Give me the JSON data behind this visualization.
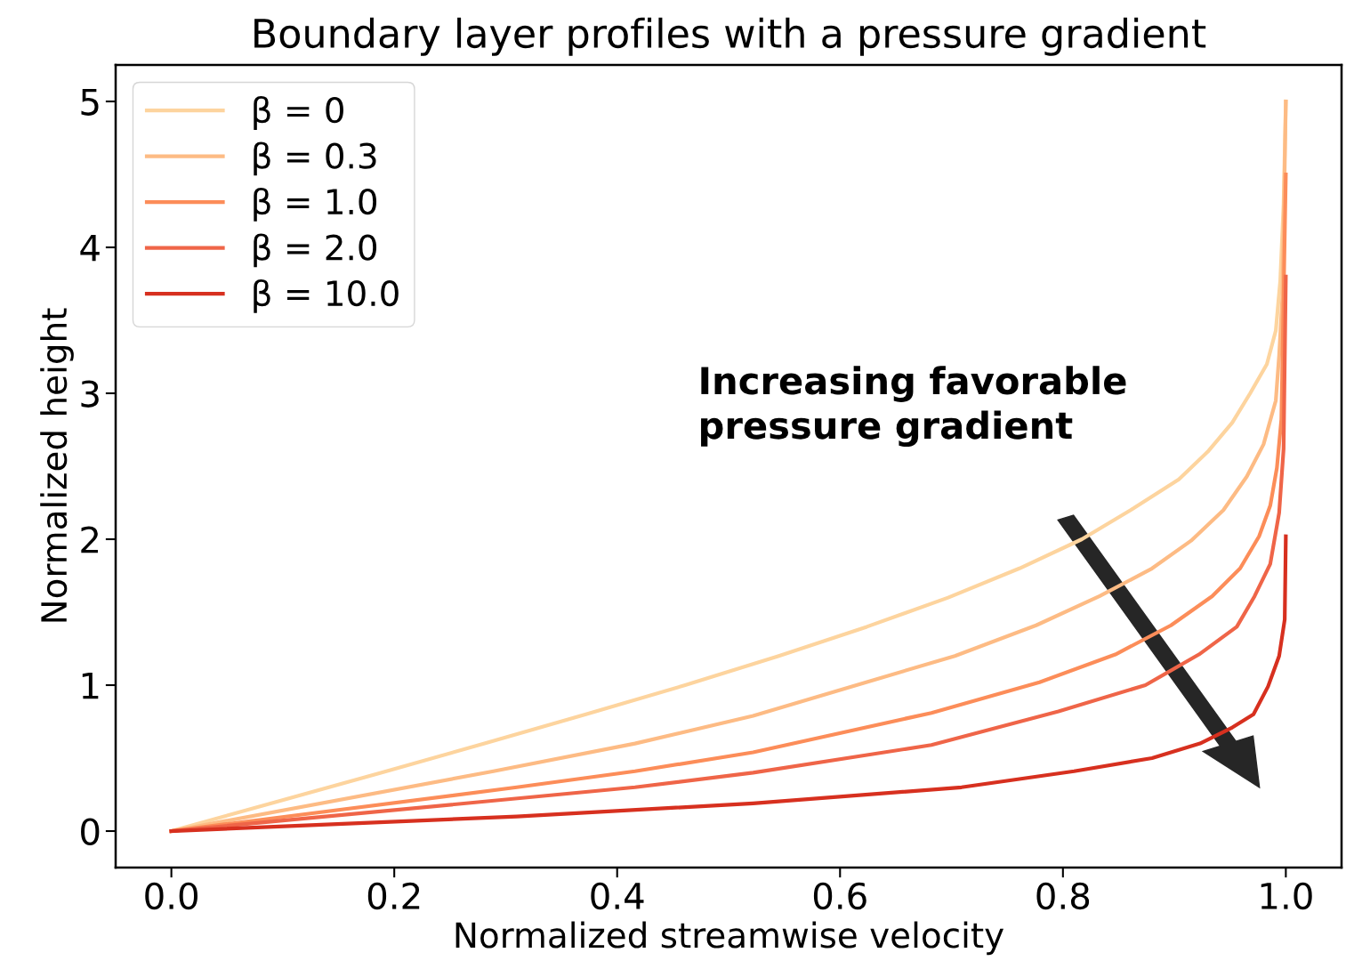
{
  "chart_data": {
    "type": "line",
    "title": "Boundary layer profiles with a pressure gradient",
    "xlabel": "Normalized streamwise velocity",
    "ylabel": "Normalized height",
    "series": [
      {
        "name": "β = 0",
        "color": "#fdd49e",
        "x": [
          0,
          0.094,
          0.188,
          0.281,
          0.372,
          0.461,
          0.545,
          0.624,
          0.697,
          0.761,
          0.817,
          0.863,
          0.904,
          0.93,
          0.952,
          0.968,
          0.983,
          0.991,
          0.995,
          0.998,
          1.0
        ],
        "values": [
          0,
          0.2,
          0.4,
          0.6,
          0.8,
          1.0,
          1.2,
          1.4,
          1.6,
          1.8,
          2.0,
          2.21,
          2.41,
          2.6,
          2.8,
          3.0,
          3.2,
          3.43,
          3.77,
          4.3,
          5.0
        ]
      },
      {
        "name": "β = 0.3",
        "color": "#fdbb84",
        "x": [
          0,
          0.289,
          0.416,
          0.522,
          0.703,
          0.776,
          0.833,
          0.88,
          0.915,
          0.944,
          0.965,
          0.98,
          0.991,
          0.994,
          0.997,
          1.0
        ],
        "values": [
          0,
          0.41,
          0.6,
          0.79,
          1.2,
          1.41,
          1.61,
          1.8,
          1.99,
          2.2,
          2.43,
          2.65,
          2.95,
          3.26,
          3.67,
          5.0
        ]
      },
      {
        "name": "β = 1.0",
        "color": "#fc8d59",
        "x": [
          0,
          0.31,
          0.416,
          0.522,
          0.682,
          0.779,
          0.847,
          0.897,
          0.934,
          0.959,
          0.976,
          0.986,
          0.992,
          0.996,
          1.0
        ],
        "values": [
          0,
          0.3,
          0.41,
          0.54,
          0.81,
          1.02,
          1.21,
          1.41,
          1.61,
          1.8,
          2.02,
          2.23,
          2.49,
          2.82,
          4.5
        ]
      },
      {
        "name": "β = 2.0",
        "color": "#ef6548",
        "x": [
          0,
          0.416,
          0.522,
          0.682,
          0.796,
          0.874,
          0.922,
          0.956,
          0.972,
          0.986,
          0.994,
          0.998,
          1.0
        ],
        "values": [
          0,
          0.3,
          0.4,
          0.59,
          0.82,
          1.0,
          1.21,
          1.4,
          1.61,
          1.83,
          2.18,
          2.62,
          3.8
        ]
      },
      {
        "name": "β = 10.0",
        "color": "#d7301f",
        "x": [
          0,
          0.31,
          0.522,
          0.709,
          0.81,
          0.88,
          0.923,
          0.952,
          0.971,
          0.984,
          0.994,
          0.999,
          1.0
        ],
        "values": [
          0,
          0.1,
          0.19,
          0.3,
          0.41,
          0.5,
          0.6,
          0.71,
          0.8,
          0.99,
          1.2,
          1.45,
          2.02
        ]
      }
    ],
    "annotations": [
      "Increasing favorable\npressure gradient"
    ],
    "xlim": [
      -0.05,
      1.05
    ],
    "ylim": [
      -0.25,
      5.25
    ],
    "xticks": [
      {
        "value": 0,
        "label": "0.0"
      },
      {
        "value": 0.2,
        "label": "0.2"
      },
      {
        "value": 0.4,
        "label": "0.4"
      },
      {
        "value": 0.6,
        "label": "0.6"
      },
      {
        "value": 0.8,
        "label": "0.8"
      },
      {
        "value": 1,
        "label": "1.0"
      }
    ],
    "yticks": [
      0,
      1,
      2,
      3,
      4,
      5
    ],
    "legend": "top left",
    "grid": false,
    "marker": "none",
    "line_style": "solid"
  }
}
